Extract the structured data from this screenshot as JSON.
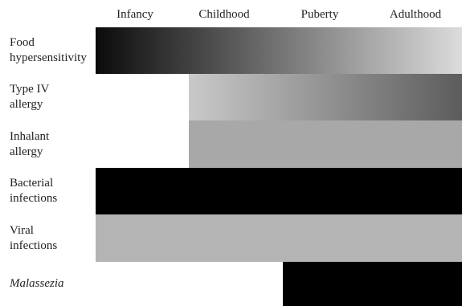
{
  "stages": [
    "Infancy",
    "Childhood",
    "Puberty",
    "Adulthood"
  ],
  "rows": [
    {
      "line1": "Food",
      "line2": "hypersensitivity",
      "italic": false,
      "start_stage": "Infancy",
      "fill": "gradient",
      "color_from": "#0b0b0b",
      "color_to": "#dcdcdc"
    },
    {
      "line1": "Type IV",
      "line2": "allergy",
      "italic": false,
      "start_stage": "Childhood",
      "fill": "gradient",
      "color_from": "#c9c9c9",
      "color_to": "#5c5c5c"
    },
    {
      "line1": "Inhalant",
      "line2": "allergy",
      "italic": false,
      "start_stage": "Childhood",
      "fill": "solid",
      "color": "#a8a8a8"
    },
    {
      "line1": "Bacterial",
      "line2": "infections",
      "italic": false,
      "start_stage": "Infancy",
      "fill": "solid",
      "color": "#000000"
    },
    {
      "line1": "Viral",
      "line2": "infections",
      "italic": false,
      "start_stage": "Infancy",
      "fill": "solid",
      "color": "#b4b4b4"
    },
    {
      "line1": "Malassezia",
      "line2": "",
      "italic": true,
      "start_stage": "Puberty",
      "fill": "solid",
      "color": "#000000"
    }
  ]
}
